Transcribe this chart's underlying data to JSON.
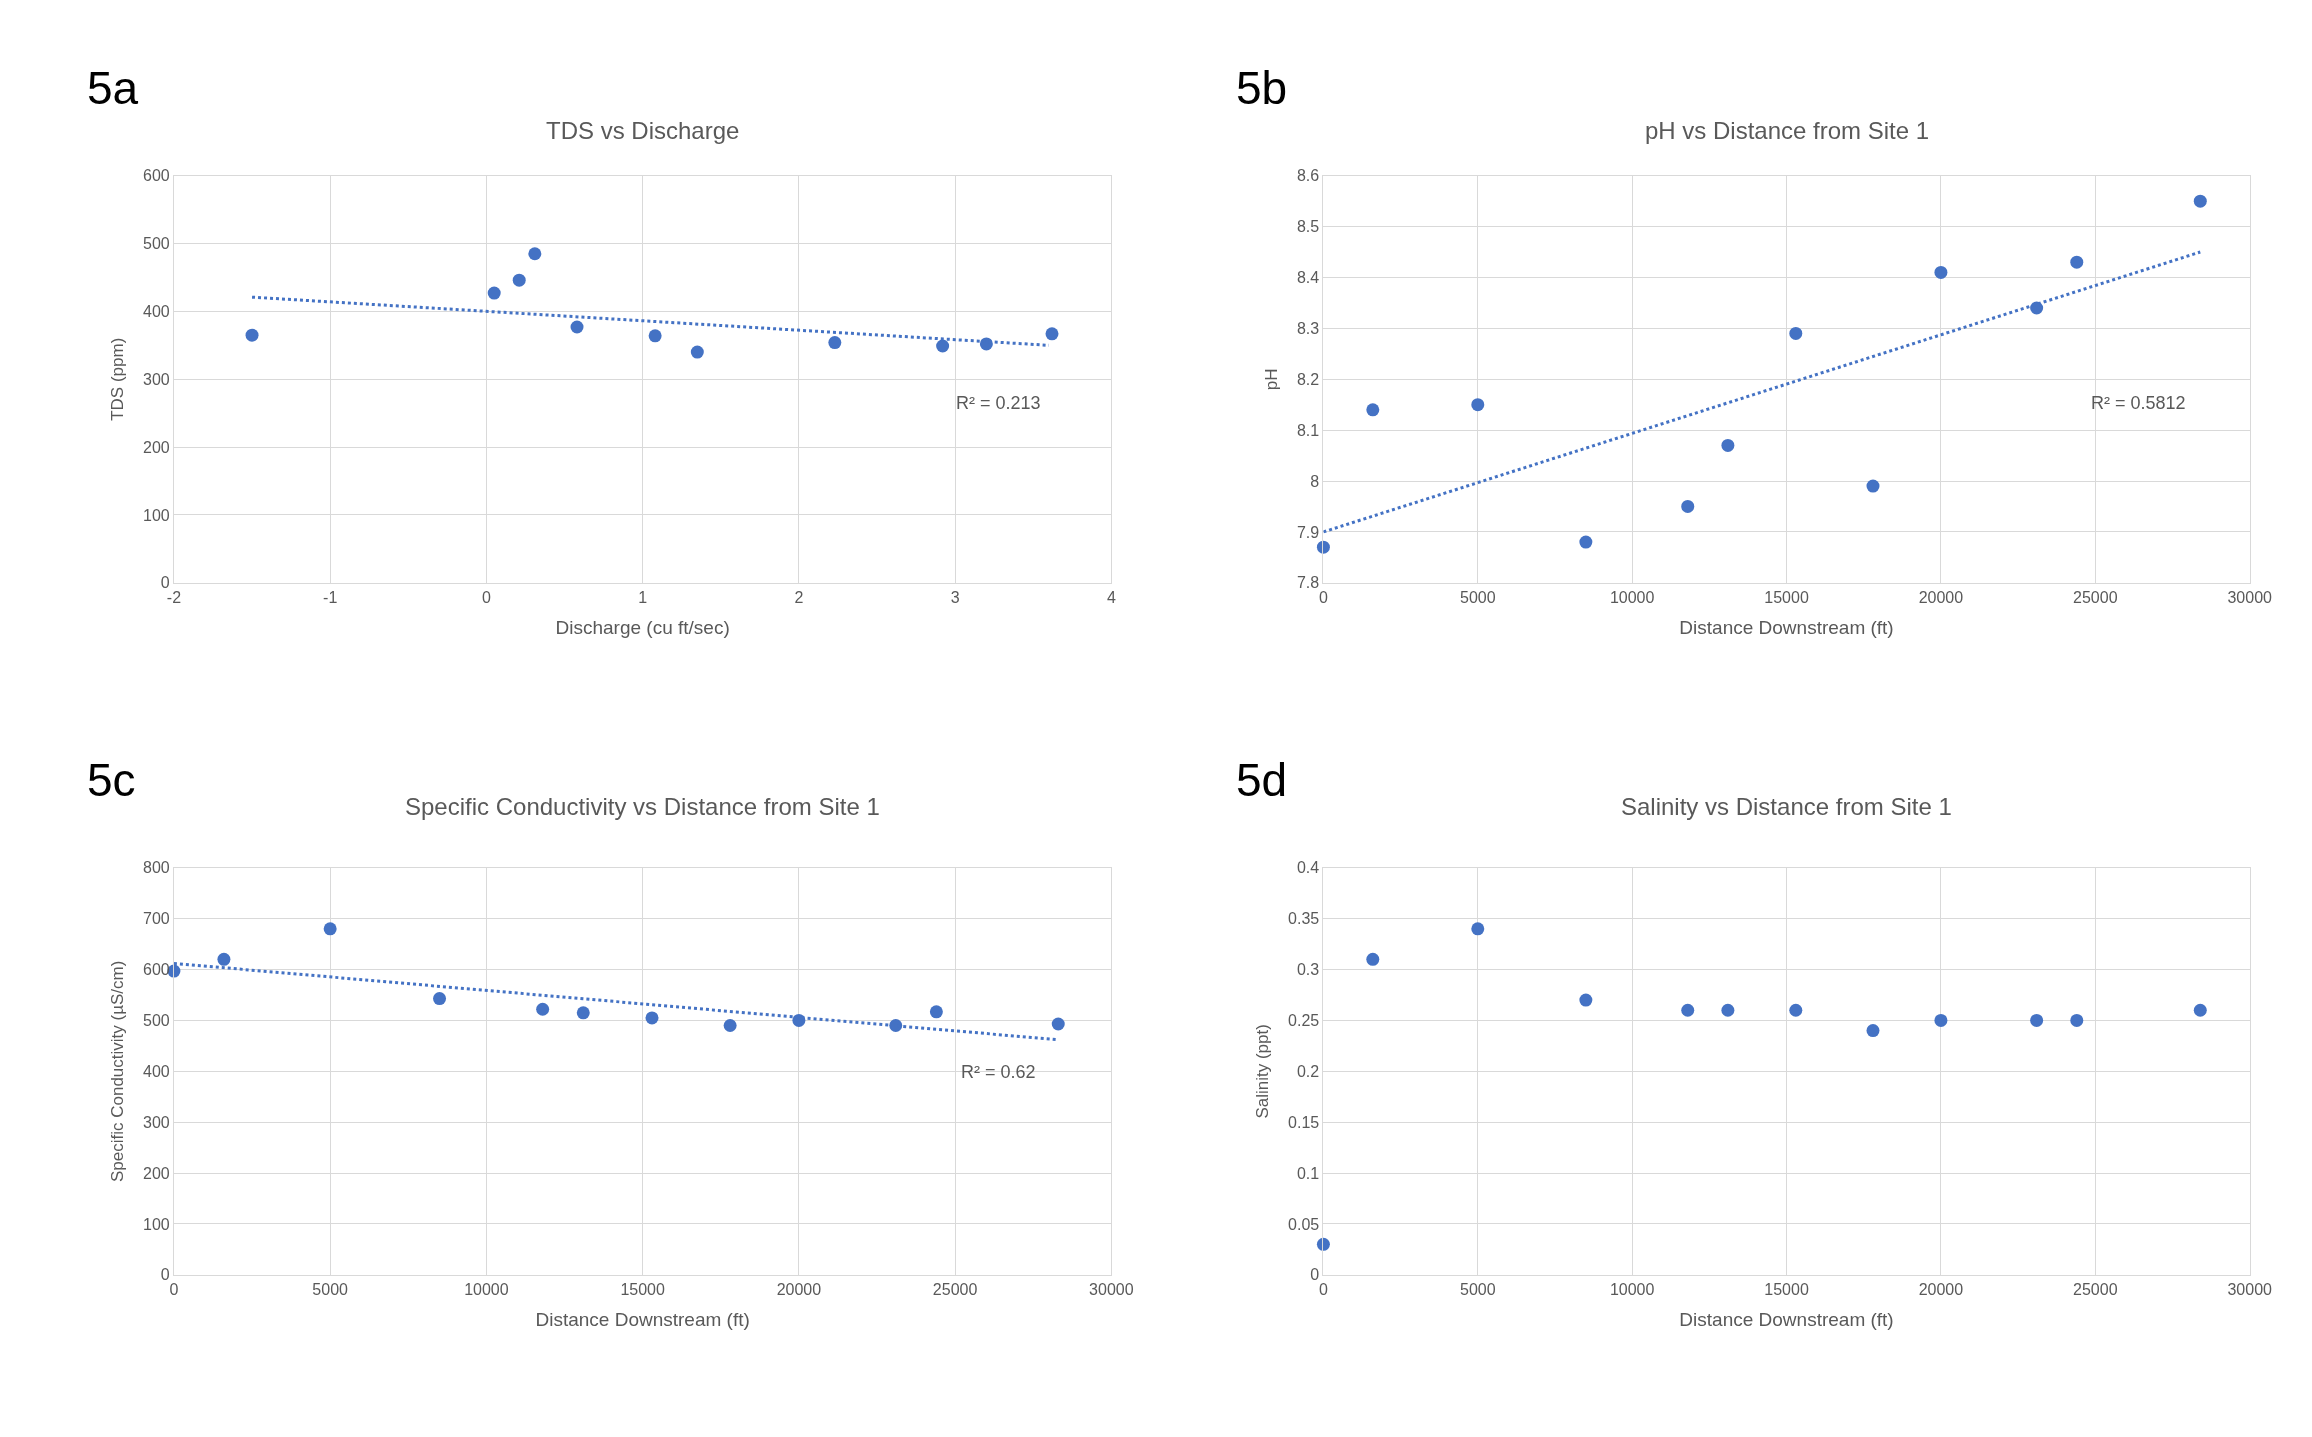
{
  "chart_data": [
    {
      "type": "scatter",
      "title": "TDS vs Discharge",
      "xlabel": "Discharge (cu ft/sec)",
      "ylabel": "TDS (ppm)",
      "annotations": [
        "5a",
        "R² = 0.213"
      ],
      "xlim": [
        -2,
        4
      ],
      "xticks": [
        -2,
        -1,
        0,
        1,
        2,
        3,
        4
      ],
      "ylim": [
        0,
        600
      ],
      "yticks": [
        0,
        100,
        200,
        300,
        400,
        500,
        600
      ],
      "grid": true,
      "marker": "circle",
      "series": [
        {
          "color": "#4472c4",
          "x": [
            -1.5,
            0.05,
            0.21,
            0.31,
            0.58,
            1.08,
            1.35,
            2.23,
            2.92,
            3.2,
            3.62
          ],
          "values": [
            365,
            427,
            446,
            485,
            377,
            364,
            340,
            354,
            349,
            352,
            367
          ]
        },
        {
          "type": "line",
          "marker": "none",
          "line_style": "dotted",
          "color": "#4472c4",
          "x": [
            -1.5,
            3.6
          ],
          "values": [
            421,
            350
          ]
        }
      ]
    },
    {
      "type": "scatter",
      "title": "pH vs Distance from Site 1",
      "xlabel": "Distance Downstream (ft)",
      "ylabel": "pH",
      "annotations": [
        "5b",
        "R² = 0.5812"
      ],
      "xlim": [
        0,
        30000
      ],
      "xticks": [
        0,
        5000,
        10000,
        15000,
        20000,
        25000,
        30000
      ],
      "ylim": [
        7.8,
        8.6
      ],
      "yticks": [
        7.8,
        7.9,
        8,
        8.1,
        8.2,
        8.3,
        8.4,
        8.5,
        8.6
      ],
      "grid": true,
      "marker": "circle",
      "series": [
        {
          "color": "#4472c4",
          "x": [
            0,
            1600,
            5000,
            8500,
            11800,
            13100,
            15300,
            17800,
            20000,
            23100,
            24400,
            28400
          ],
          "values": [
            7.87,
            8.14,
            8.15,
            7.88,
            7.95,
            8.07,
            8.29,
            7.99,
            8.41,
            8.34,
            8.43,
            8.55
          ]
        },
        {
          "type": "line",
          "marker": "none",
          "line_style": "dotted",
          "color": "#4472c4",
          "x": [
            0,
            28400
          ],
          "values": [
            7.9,
            8.45
          ]
        }
      ]
    },
    {
      "type": "scatter",
      "title": "Specific Conductivity vs Distance from Site 1",
      "xlabel": "Distance Downstream (ft)",
      "ylabel": "Specific Conductivity (µS/cm)",
      "annotations": [
        "5c",
        "R² = 0.62"
      ],
      "xlim": [
        0,
        30000
      ],
      "xticks": [
        0,
        5000,
        10000,
        15000,
        20000,
        25000,
        30000
      ],
      "ylim": [
        0,
        800
      ],
      "yticks": [
        0,
        100,
        200,
        300,
        400,
        500,
        600,
        700,
        800
      ],
      "grid": true,
      "marker": "circle",
      "series": [
        {
          "color": "#4472c4",
          "x": [
            0,
            1600,
            5000,
            8500,
            11800,
            13100,
            15300,
            17800,
            20000,
            23100,
            24400,
            28300
          ],
          "values": [
            597,
            620,
            680,
            543,
            522,
            515,
            505,
            490,
            500,
            490,
            517,
            493
          ]
        },
        {
          "type": "line",
          "marker": "none",
          "line_style": "dotted",
          "color": "#4472c4",
          "x": [
            0,
            28300
          ],
          "values": [
            612,
            462
          ]
        }
      ]
    },
    {
      "type": "scatter",
      "title": "Salinity vs Distance from Site 1",
      "xlabel": "Distance Downstream (ft)",
      "ylabel": "Salinity (ppt)",
      "annotations": [
        "5d"
      ],
      "xlim": [
        0,
        30000
      ],
      "xticks": [
        0,
        5000,
        10000,
        15000,
        20000,
        25000,
        30000
      ],
      "ylim": [
        0,
        0.4
      ],
      "yticks": [
        0,
        0.05,
        0.1,
        0.15,
        0.2,
        0.25,
        0.3,
        0.35,
        0.4
      ],
      "grid": true,
      "marker": "circle",
      "series": [
        {
          "color": "#4472c4",
          "x": [
            0,
            1600,
            5000,
            8500,
            11800,
            13100,
            15300,
            17800,
            20000,
            23100,
            24400,
            28400
          ],
          "values": [
            0.03,
            0.31,
            0.34,
            0.27,
            0.26,
            0.26,
            0.26,
            0.24,
            0.25,
            0.25,
            0.25,
            0.26
          ]
        }
      ]
    }
  ]
}
